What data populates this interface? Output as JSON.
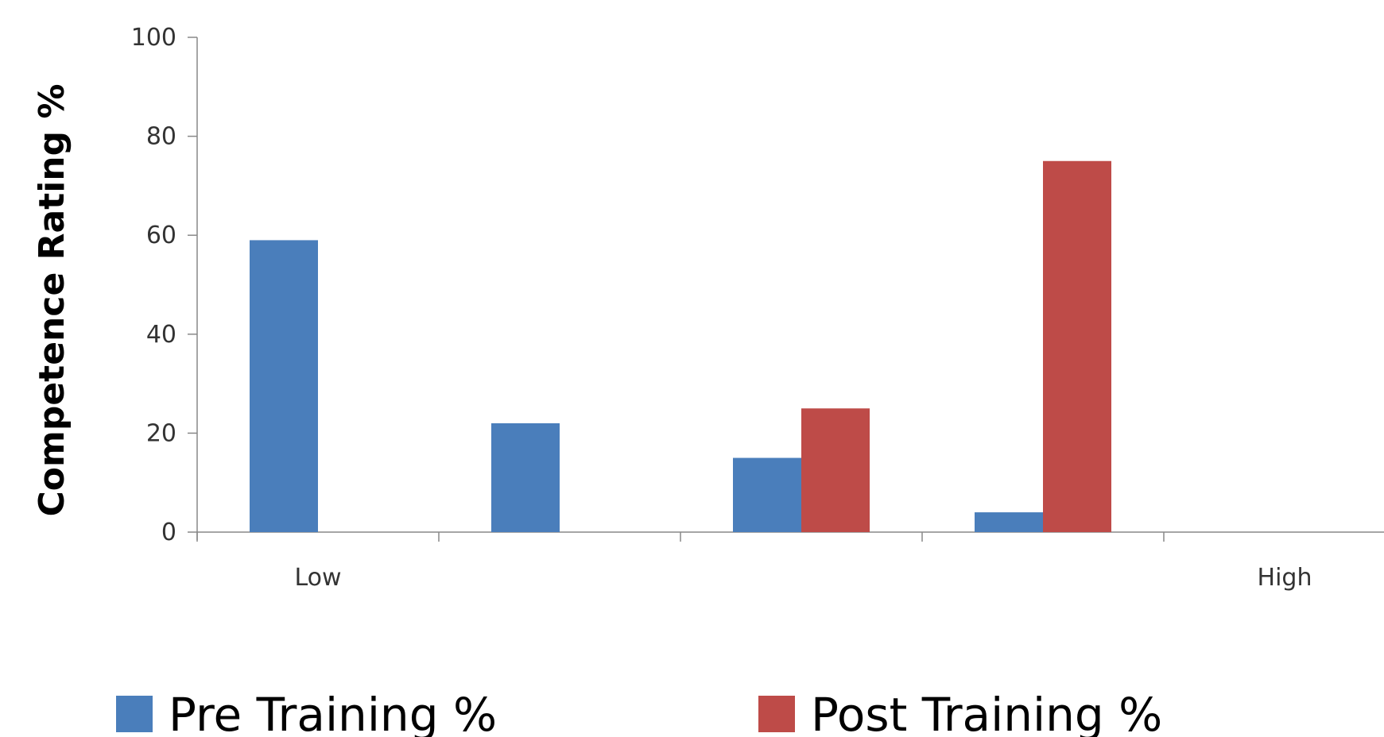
{
  "chart_data": {
    "type": "bar",
    "categories": [
      "Low",
      "",
      "",
      "",
      "High"
    ],
    "series": [
      {
        "name": "Pre Training %",
        "values": [
          59,
          22,
          15,
          4,
          0
        ],
        "color": "#4A7EBB"
      },
      {
        "name": "Post Training %",
        "values": [
          0,
          0,
          25,
          75,
          0
        ],
        "color": "#BE4B48"
      }
    ],
    "title": "",
    "xlabel": "",
    "ylabel": "Competence Rating %",
    "ylim": [
      0,
      100
    ],
    "yticks": [
      0,
      20,
      40,
      60,
      80,
      100
    ],
    "grid": false,
    "legend": "bottom"
  }
}
